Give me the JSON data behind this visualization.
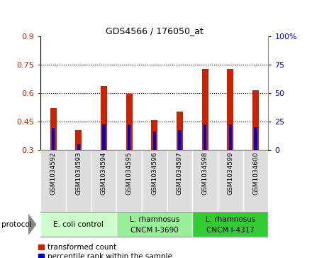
{
  "title": "GDS4566 / 176050_at",
  "samples": [
    "GSM1034592",
    "GSM1034593",
    "GSM1034594",
    "GSM1034595",
    "GSM1034596",
    "GSM1034597",
    "GSM1034598",
    "GSM1034599",
    "GSM1034600"
  ],
  "transformed_count_top": [
    0.52,
    0.405,
    0.635,
    0.595,
    0.455,
    0.5,
    0.725,
    0.725,
    0.615
  ],
  "transformed_count_bottom": [
    0.3,
    0.3,
    0.3,
    0.3,
    0.3,
    0.3,
    0.3,
    0.3,
    0.3
  ],
  "percentile_rank": [
    19,
    5,
    22,
    22,
    16,
    17,
    22,
    22,
    20
  ],
  "ylim_left": [
    0.3,
    0.9
  ],
  "ylim_right": [
    0,
    100
  ],
  "yticks_left": [
    0.3,
    0.45,
    0.6,
    0.75,
    0.9
  ],
  "yticks_right": [
    0,
    25,
    50,
    75,
    100
  ],
  "ytick_labels_left": [
    "0.3",
    "0.45",
    "0.6",
    "0.75",
    "0.9"
  ],
  "ytick_labels_right": [
    "0",
    "25",
    "50",
    "75",
    "100%"
  ],
  "protocols": [
    {
      "label": "E. coli control",
      "samples": [
        0,
        1,
        2
      ],
      "color": "#ccffcc"
    },
    {
      "label": "L. rhamnosus\nCNCM I-3690",
      "samples": [
        3,
        4,
        5
      ],
      "color": "#99ee99"
    },
    {
      "label": "L. rhamnosus\nCNCM I-4317",
      "samples": [
        6,
        7,
        8
      ],
      "color": "#33cc33"
    }
  ],
  "bar_color_red": "#cc2200",
  "bar_color_blue": "#0000cc",
  "bar_width": 0.25,
  "blue_bar_width": 0.12,
  "grid_color": "#000000",
  "cell_bg_color": "#dddddd",
  "plot_bg_color": "#ffffff",
  "legend_red_label": "transformed count",
  "legend_blue_label": "percentile rank within the sample",
  "protocol_label": "protocol",
  "left_axis_color": "#cc2200",
  "right_axis_color": "#0000cc"
}
